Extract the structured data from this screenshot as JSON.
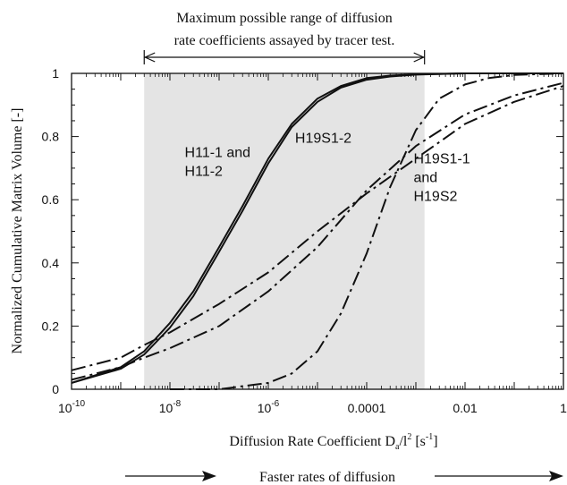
{
  "chart_data": {
    "type": "line",
    "xlabel_main": "Diffusion Rate Coefficient D",
    "xlabel_sub": "a",
    "xlabel_rest": "/l",
    "xlabel_sup": "2",
    "xlabel_unit_open": " [s",
    "xlabel_unit_sup": "-1",
    "xlabel_unit_close": "]",
    "ylabel": "Normalized Cumulative Matrix Volume [-]",
    "x_scale": "log",
    "xlim": [
      1e-10,
      1
    ],
    "ylim": [
      0,
      1
    ],
    "x_ticks": [
      {
        "v": 1e-10,
        "base": "10",
        "exp": "-10"
      },
      {
        "v": 1e-08,
        "base": "10",
        "exp": "-8"
      },
      {
        "v": 1e-06,
        "base": "10",
        "exp": "-6"
      },
      {
        "v": 0.0001,
        "label": "0.0001"
      },
      {
        "v": 0.01,
        "label": "0.01"
      },
      {
        "v": 1,
        "label": "1"
      }
    ],
    "y_ticks": [
      "0",
      "0.2",
      "0.4",
      "0.6",
      "0.8",
      "1"
    ],
    "y_tick_values": [
      0,
      0.2,
      0.4,
      0.6,
      0.8,
      1
    ],
    "shaded_range": [
      3e-09,
      0.0015
    ],
    "range_annotation": [
      "Maximum possible range of diffusion",
      "rate coefficients assayed by tracer test."
    ],
    "footer_annotation": "Faster rates of diffusion",
    "series_labels": [
      {
        "lines": [
          "H11-1 and",
          "H11-2"
        ],
        "x": 2e-08,
        "y": 0.735
      },
      {
        "lines": [
          "H19S1-2"
        ],
        "x": 3.5e-06,
        "y": 0.78
      },
      {
        "lines": [
          "H19S1-1",
          "and",
          "H19S2"
        ],
        "x": 0.0009,
        "y": 0.715
      }
    ],
    "series": [
      {
        "style": "solid",
        "x": [
          1e-10,
          1e-09,
          3e-09,
          1e-08,
          3e-08,
          1e-07,
          3e-07,
          1e-06,
          3e-06,
          1e-05,
          3e-05,
          0.0001,
          0.0003,
          0.001,
          0.01,
          1
        ],
        "y": [
          0.02,
          0.07,
          0.12,
          0.21,
          0.31,
          0.45,
          0.58,
          0.73,
          0.84,
          0.92,
          0.96,
          0.985,
          0.993,
          0.997,
          1.0,
          1.0
        ]
      },
      {
        "style": "solid",
        "x": [
          1e-10,
          1e-09,
          3e-09,
          1e-08,
          3e-08,
          1e-07,
          3e-07,
          1e-06,
          3e-06,
          1e-05,
          3e-05,
          0.0001,
          0.0003,
          0.001,
          0.01,
          1
        ],
        "y": [
          0.02,
          0.065,
          0.11,
          0.195,
          0.295,
          0.435,
          0.565,
          0.715,
          0.83,
          0.91,
          0.955,
          0.98,
          0.99,
          0.996,
          1.0,
          1.0
        ]
      },
      {
        "style": "dashdot",
        "x": [
          1e-08,
          1e-07,
          1e-06,
          3e-06,
          1e-05,
          3e-05,
          0.0001,
          0.0003,
          0.001,
          0.003,
          0.01,
          0.03,
          0.1,
          1
        ],
        "y": [
          0.0,
          0.0,
          0.02,
          0.05,
          0.12,
          0.24,
          0.43,
          0.64,
          0.82,
          0.92,
          0.965,
          0.985,
          0.995,
          1.0
        ]
      },
      {
        "style": "dashdot",
        "x": [
          1e-10,
          1e-09,
          3e-09,
          1e-08,
          1e-07,
          1e-06,
          1e-05,
          0.0001,
          0.001,
          0.01,
          0.1,
          1
        ],
        "y": [
          0.06,
          0.1,
          0.14,
          0.18,
          0.27,
          0.37,
          0.5,
          0.62,
          0.73,
          0.84,
          0.91,
          0.96
        ]
      },
      {
        "style": "dashdot",
        "x": [
          1e-10,
          1e-09,
          3e-09,
          1e-08,
          1e-07,
          1e-06,
          1e-05,
          0.0001,
          0.001,
          0.01,
          0.1,
          1
        ],
        "y": [
          0.03,
          0.07,
          0.1,
          0.13,
          0.2,
          0.31,
          0.45,
          0.63,
          0.77,
          0.87,
          0.93,
          0.97
        ]
      }
    ]
  }
}
